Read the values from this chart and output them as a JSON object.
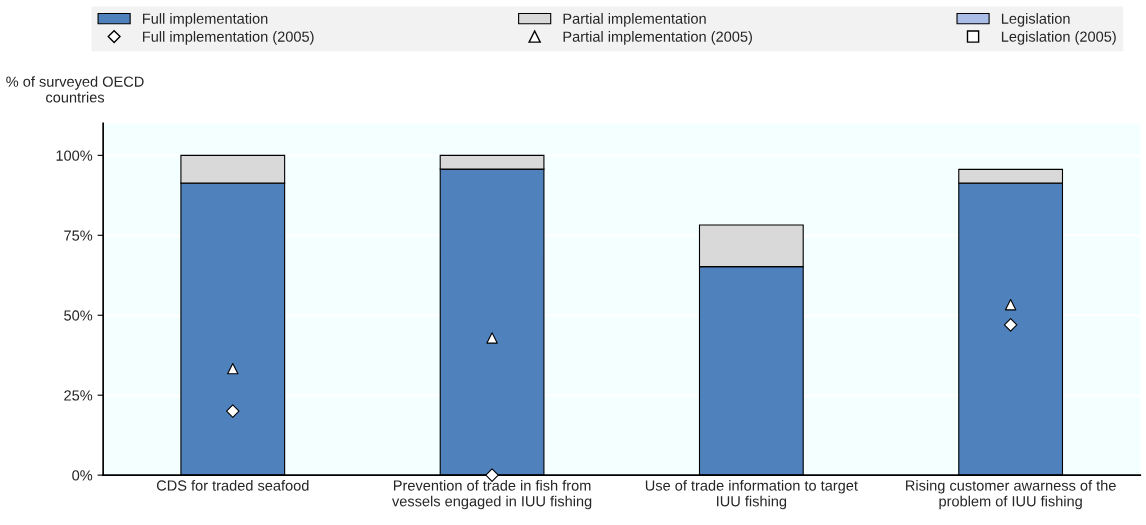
{
  "chart_data": {
    "type": "bar",
    "stacked": true,
    "ylabel": "% of surveyed OECD\ncountries",
    "categories": [
      "CDS for traded seafood",
      "Prevention of trade in fish from\nvessels engaged in IUU fishing",
      "Use of trade information to target\nIUU fishing",
      "Rising customer awarness of the\nproblem of IUU fishing"
    ],
    "series": [
      {
        "name": "Full implementation",
        "color": "#4f81bd",
        "values": [
          91.3,
          95.7,
          65.2,
          91.3
        ]
      },
      {
        "name": "Partial implementation",
        "color": "#d9d9d9",
        "values": [
          8.7,
          4.3,
          13.0,
          4.3
        ]
      },
      {
        "name": "Legislation",
        "color": "#a9bde6",
        "values": [
          null,
          null,
          null,
          null
        ]
      },
      {
        "name": "Full implementation (2005)",
        "type": "scatter",
        "marker": "diamond",
        "color": "#ffffff",
        "values": [
          20,
          0,
          null,
          47
        ]
      },
      {
        "name": "Partial implementation (2005)",
        "type": "scatter",
        "marker": "triangle",
        "color": "#ffffff",
        "values": [
          33.3,
          42.9,
          null,
          53.3
        ]
      },
      {
        "name": "Legislation (2005)",
        "type": "scatter",
        "marker": "square",
        "color": "#ffffff",
        "values": [
          null,
          null,
          null,
          null
        ]
      }
    ],
    "ylim": [
      0,
      110
    ],
    "yticks": [
      {
        "value": 0,
        "label": "0%"
      },
      {
        "value": 25,
        "label": "25%"
      },
      {
        "value": 50,
        "label": "50%"
      },
      {
        "value": 75,
        "label": "75%"
      },
      {
        "value": 100,
        "label": "100%"
      }
    ],
    "grid": "y",
    "legend": "top"
  }
}
